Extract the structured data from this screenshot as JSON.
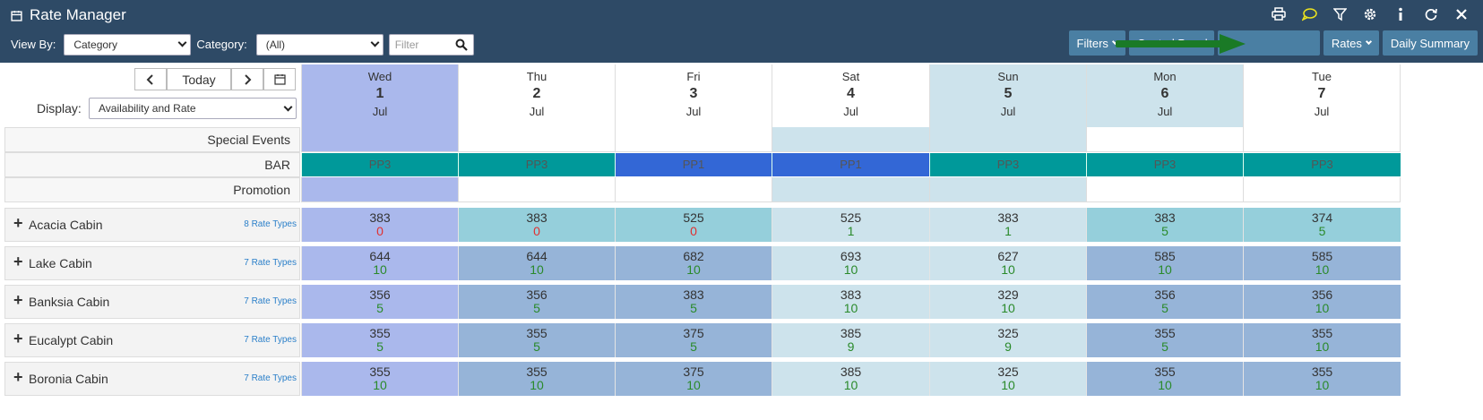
{
  "header": {
    "title": "Rate Manager",
    "icons": [
      "print-icon",
      "comment-icon",
      "filter-icon",
      "settings-icon",
      "info-icon",
      "refresh-icon",
      "close-icon"
    ]
  },
  "filters": {
    "view_by_label": "View By:",
    "view_by_value": "Category",
    "category_label": "Category:",
    "category_value": "(All)",
    "search_placeholder": "Filter"
  },
  "toolbar": {
    "filters": "Filters",
    "control_panel": "Control Panel",
    "rates": "Rates",
    "daily_summary": "Daily Summary"
  },
  "nav": {
    "today": "Today",
    "display_label": "Display:",
    "display_value": "Availability and Rate"
  },
  "days": [
    {
      "dow": "Wed",
      "num": "1",
      "mon": "Jul"
    },
    {
      "dow": "Thu",
      "num": "2",
      "mon": "Jul"
    },
    {
      "dow": "Fri",
      "num": "3",
      "mon": "Jul"
    },
    {
      "dow": "Sat",
      "num": "4",
      "mon": "Jul"
    },
    {
      "dow": "Sun",
      "num": "5",
      "mon": "Jul"
    },
    {
      "dow": "Mon",
      "num": "6",
      "mon": "Jul"
    },
    {
      "dow": "Tue",
      "num": "7",
      "mon": "Jul"
    }
  ],
  "rows": {
    "special_events": "Special Events",
    "bar": "BAR",
    "promotion": "Promotion"
  },
  "bar_values": [
    "PP3",
    "PP3",
    "PP1",
    "PP1",
    "PP3",
    "PP3",
    "PP3"
  ],
  "colors": {
    "header_bg": "#2e4a66",
    "button_bg": "#4a7fa3",
    "today_col": "#aab8ec",
    "weekend_col": "#cde3ec",
    "bar_pp3": "#00999a",
    "bar_pp1": "#3367d6",
    "room_blue": "#96b4d8",
    "room_teal": "#95cfdb",
    "avail_zero": "#e03030",
    "avail_pos": "#2a8a2a"
  },
  "rooms": [
    {
      "name": "Acacia Cabin",
      "rate_types": "8 Rate Types",
      "cells": [
        {
          "rate": "383",
          "avail": "0"
        },
        {
          "rate": "383",
          "avail": "0"
        },
        {
          "rate": "525",
          "avail": "0"
        },
        {
          "rate": "525",
          "avail": "1"
        },
        {
          "rate": "383",
          "avail": "1"
        },
        {
          "rate": "383",
          "avail": "5"
        },
        {
          "rate": "374",
          "avail": "5"
        }
      ]
    },
    {
      "name": "Lake Cabin",
      "rate_types": "7 Rate Types",
      "cells": [
        {
          "rate": "644",
          "avail": "10"
        },
        {
          "rate": "644",
          "avail": "10"
        },
        {
          "rate": "682",
          "avail": "10"
        },
        {
          "rate": "693",
          "avail": "10"
        },
        {
          "rate": "627",
          "avail": "10"
        },
        {
          "rate": "585",
          "avail": "10"
        },
        {
          "rate": "585",
          "avail": "10"
        }
      ]
    },
    {
      "name": "Banksia Cabin",
      "rate_types": "7 Rate Types",
      "cells": [
        {
          "rate": "356",
          "avail": "5"
        },
        {
          "rate": "356",
          "avail": "5"
        },
        {
          "rate": "383",
          "avail": "5"
        },
        {
          "rate": "383",
          "avail": "10"
        },
        {
          "rate": "329",
          "avail": "10"
        },
        {
          "rate": "356",
          "avail": "5"
        },
        {
          "rate": "356",
          "avail": "10"
        }
      ]
    },
    {
      "name": "Eucalypt Cabin",
      "rate_types": "7 Rate Types",
      "cells": [
        {
          "rate": "355",
          "avail": "5"
        },
        {
          "rate": "355",
          "avail": "5"
        },
        {
          "rate": "375",
          "avail": "5"
        },
        {
          "rate": "385",
          "avail": "9"
        },
        {
          "rate": "325",
          "avail": "9"
        },
        {
          "rate": "355",
          "avail": "5"
        },
        {
          "rate": "355",
          "avail": "10"
        }
      ]
    },
    {
      "name": "Boronia Cabin",
      "rate_types": "7 Rate Types",
      "cells": [
        {
          "rate": "355",
          "avail": "10"
        },
        {
          "rate": "355",
          "avail": "10"
        },
        {
          "rate": "375",
          "avail": "10"
        },
        {
          "rate": "385",
          "avail": "10"
        },
        {
          "rate": "325",
          "avail": "10"
        },
        {
          "rate": "355",
          "avail": "10"
        },
        {
          "rate": "355",
          "avail": "10"
        }
      ]
    }
  ]
}
